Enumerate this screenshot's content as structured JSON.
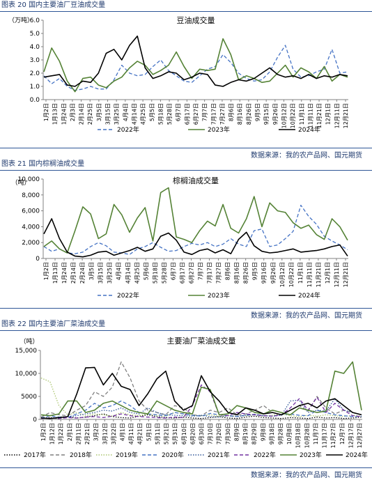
{
  "figures": [
    {
      "caption": "图表 20 国内主要油厂豆油成交量",
      "source": "数据来源：我的农产品网、国元期货"
    },
    {
      "caption": "图表 21 国内棕榈油成交量",
      "source": "数据来源：我的农产品网、国元期货"
    },
    {
      "caption": "图表 22 国内主要油厂菜油成交量",
      "source": "数据来源：我的农产品网、国元期货"
    }
  ],
  "chart_data": [
    {
      "type": "line",
      "title": "豆油成交量",
      "unit_label": "（万吨）",
      "ylim": [
        0,
        6
      ],
      "y_ticks": [
        "0.0",
        "1.0",
        "2.0",
        "3.0",
        "4.0",
        "5.0",
        "6.0"
      ],
      "x_tick_labels": [
        "1月2日",
        "1月13日",
        "1月24日",
        "2月3日",
        "2月14日",
        "2月25日",
        "3月5日",
        "3月15日",
        "3月25日",
        "4月4日",
        "4月14日",
        "4月25日",
        "5月5日",
        "5月18日",
        "5月28日",
        "6月7日",
        "6月17日",
        "6月27日",
        "7月7日",
        "7月17日",
        "7月27日",
        "8月6日",
        "8月16日",
        "8月26日",
        "9月5日",
        "9月15日",
        "9月26日",
        "10月12日",
        "10月22日",
        "11月1日",
        "11月11日",
        "11月21日",
        "12月1日",
        "12月11日",
        "12月21日"
      ],
      "grid": false,
      "legend_position": "bottom",
      "series": [
        {
          "name": "2022年",
          "color": "#4472c4",
          "dash": "dashed",
          "values": [
            1.8,
            1.2,
            1.6,
            1.0,
            0.7,
            0.8,
            1.0,
            0.8,
            0.8,
            1.5,
            2.6,
            2.0,
            1.8,
            1.9,
            2.5,
            3.0,
            2.2,
            1.8,
            1.4,
            1.3,
            1.8,
            2.3,
            2.5,
            3.4,
            2.8,
            2.0,
            1.6,
            1.4,
            1.5,
            2.1,
            3.2,
            4.1,
            2.3,
            1.7,
            1.8,
            2.1,
            2.3,
            3.8,
            2.0,
            2.1
          ]
        },
        {
          "name": "2023年",
          "color": "#548235",
          "dash": "solid",
          "values": [
            2.1,
            3.9,
            2.9,
            1.4,
            0.6,
            1.6,
            1.7,
            1.1,
            0.9,
            1.4,
            1.7,
            2.4,
            2.9,
            2.6,
            1.9,
            2.2,
            2.6,
            3.6,
            2.5,
            1.6,
            2.3,
            2.2,
            2.3,
            4.6,
            3.4,
            1.5,
            1.8,
            1.6,
            1.3,
            1.4,
            2.0,
            2.6,
            1.7,
            2.4,
            2.1,
            1.6,
            2.5,
            1.4,
            1.9,
            1.7
          ]
        },
        {
          "name": "2024年",
          "color": "#000000",
          "dash": "solid",
          "values": [
            1.7,
            1.8,
            1.9,
            1.1,
            1.0,
            1.4,
            1.3,
            2.0,
            3.5,
            3.8,
            3.0,
            4.1,
            4.8,
            2.4,
            1.6,
            1.8,
            2.1,
            2.0,
            1.5,
            1.7,
            2.0,
            1.9,
            1.1,
            1.0,
            1.3,
            1.5,
            1.4,
            1.6,
            2.0,
            2.4,
            1.9,
            1.7,
            1.8,
            1.6,
            1.9,
            1.6,
            1.8,
            1.7,
            1.9,
            1.8
          ]
        }
      ]
    },
    {
      "type": "line",
      "title": "棕榈油成交量",
      "unit_label": "（吨）",
      "ylim": [
        0,
        10000
      ],
      "y_ticks": [
        "0",
        "2,000",
        "4,000",
        "6,000",
        "8,000",
        "10,000"
      ],
      "x_tick_labels": [
        "1月2日",
        "1月13日",
        "1月24日",
        "2月14日",
        "2月24日",
        "3月5日",
        "3月15日",
        "3月25日",
        "4月4日",
        "4月14日",
        "4月25日",
        "5月6日",
        "5月18日",
        "5月28日",
        "6月7日",
        "6月17日",
        "6月27日",
        "7月7日",
        "7月17日",
        "7月27日",
        "8月6日",
        "8月16日",
        "8月26日",
        "9月5日",
        "9月16日",
        "9月26日",
        "10月12日",
        "10月22日",
        "11月1日",
        "11月11日",
        "11月21日",
        "12月1日",
        "12月11日",
        "12月21日"
      ],
      "grid": false,
      "legend_position": "bottom",
      "series": [
        {
          "name": "2022年",
          "color": "#4472c4",
          "dash": "dashed",
          "values": [
            1500,
            900,
            1200,
            700,
            600,
            800,
            1500,
            2000,
            1600,
            800,
            700,
            500,
            1200,
            1500,
            2000,
            1400,
            900,
            1000,
            1500,
            1900,
            1700,
            2000,
            1500,
            1800,
            2500,
            1800,
            1500,
            3500,
            3700,
            1500,
            1700,
            2500,
            3400,
            6700,
            5300,
            4300,
            2800,
            2200,
            1700,
            1100
          ]
        },
        {
          "name": "2023年",
          "color": "#548235",
          "dash": "solid",
          "values": [
            1500,
            2200,
            1200,
            700,
            3500,
            6500,
            5600,
            2500,
            3100,
            6800,
            5500,
            3300,
            5100,
            6400,
            2200,
            8300,
            8900,
            2700,
            2400,
            2000,
            3500,
            4700,
            4100,
            6800,
            3800,
            3200,
            5000,
            7800,
            4000,
            7000,
            6000,
            5800,
            4500,
            3800,
            4200,
            3000,
            2400,
            5000,
            4000,
            2300
          ]
        },
        {
          "name": "2024年",
          "color": "#000000",
          "dash": "solid",
          "values": [
            3100,
            5000,
            2500,
            800,
            300,
            200,
            400,
            800,
            900,
            400,
            700,
            1000,
            1400,
            900,
            1200,
            2800,
            3200,
            2300,
            800,
            500,
            1000,
            1200,
            700,
            1100,
            600,
            2400,
            3300,
            1600,
            900,
            700,
            800,
            1000,
            1200,
            800,
            900,
            1000,
            1200,
            1500,
            1700,
            300
          ]
        }
      ]
    },
    {
      "type": "line",
      "title": "主要油厂菜油成交量",
      "unit_label": "（吨）",
      "ylim": [
        0,
        15000
      ],
      "y_ticks": [
        "0",
        "5000",
        "10,000",
        "15,000"
      ],
      "x_tick_labels": [
        "1月2日",
        "1月12日",
        "1月22日",
        "2月1日",
        "2月11日",
        "2月21日",
        "3月2日",
        "3月12日",
        "3月22日",
        "4月1日",
        "4月11日",
        "4月21日",
        "5月1日",
        "5月11日",
        "5月21日",
        "5月31日",
        "6月10日",
        "6月20日",
        "6月30日",
        "7月10日",
        "7月20日",
        "7月30日",
        "8月9日",
        "8月19日",
        "8月29日",
        "9月8日",
        "9月18日",
        "9月28日",
        "10月8日",
        "10月18日",
        "10月28日",
        "11月7日",
        "11月17日",
        "11月27日",
        "12月7日",
        "12月17日",
        "12月27日"
      ],
      "grid": false,
      "legend_position": "bottom",
      "series": [
        {
          "name": "2017年",
          "color": "#000000",
          "dash": "dotted",
          "values": [
            300,
            400,
            200,
            600,
            300,
            500,
            800,
            1200,
            600,
            400,
            300,
            700,
            1000,
            600,
            400,
            300,
            500,
            300,
            200,
            400,
            600,
            300,
            200,
            500,
            700,
            400,
            300,
            200,
            400,
            300,
            200,
            500,
            300,
            400,
            200,
            300,
            500
          ]
        },
        {
          "name": "2018年",
          "color": "#7f7f7f",
          "dash": "dashed",
          "values": [
            500,
            1500,
            1000,
            800,
            2000,
            3000,
            6000,
            5000,
            7000,
            12500,
            9000,
            4000,
            2000,
            1500,
            1000,
            3000,
            2500,
            1000,
            800,
            2000,
            1500,
            2500,
            1000,
            1200,
            2000,
            3000,
            1500,
            1000,
            2000,
            3000,
            1800,
            5000,
            2500,
            1200,
            2000,
            1500,
            1000
          ]
        },
        {
          "name": "2019年",
          "color": "#a9c46c",
          "dash": "dotted",
          "values": [
            9000,
            8200,
            3000,
            1000,
            1500,
            800,
            1200,
            1000,
            700,
            1500,
            1000,
            800,
            1200,
            900,
            700,
            1500,
            1200,
            900,
            800,
            1000,
            700,
            900,
            600,
            800,
            1000,
            700,
            900,
            1200,
            800,
            600,
            900,
            700,
            1000,
            800,
            600,
            900,
            700
          ]
        },
        {
          "name": "2020年",
          "color": "#4472c4",
          "dash": "dashed",
          "values": [
            300,
            800,
            500,
            400,
            1200,
            2000,
            3500,
            2500,
            3000,
            4000,
            3000,
            1500,
            1200,
            1000,
            800,
            1500,
            1200,
            900,
            700,
            1300,
            1000,
            800,
            600,
            900,
            1100,
            800,
            700,
            1000,
            1200,
            900,
            800,
            2000,
            1500,
            1000,
            800,
            600,
            700
          ]
        },
        {
          "name": "2021年",
          "color": "#2f5597",
          "dash": "dotted",
          "values": [
            400,
            300,
            500,
            600,
            800,
            1200,
            1500,
            2000,
            1800,
            2500,
            1500,
            1200,
            2500,
            1500,
            1000,
            900,
            800,
            700,
            900,
            600,
            500,
            800,
            700,
            900,
            1000,
            800,
            700,
            900,
            4000,
            4200,
            1500,
            2000,
            1800,
            4500,
            2000,
            1500,
            1000
          ]
        },
        {
          "name": "2022年",
          "color": "#7030a0",
          "dash": "dashed",
          "values": [
            200,
            300,
            200,
            400,
            300,
            500,
            600,
            400,
            700,
            1200,
            800,
            600,
            500,
            400,
            300,
            500,
            400,
            3000,
            7500,
            6000,
            1000,
            800,
            1500,
            1200,
            1000,
            800,
            700,
            1000,
            2500,
            4500,
            2000,
            4800,
            1500,
            3500,
            2000,
            800,
            600
          ]
        },
        {
          "name": "2023年",
          "color": "#548235",
          "dash": "solid",
          "values": [
            1000,
            800,
            1200,
            4000,
            4000,
            1500,
            2000,
            3500,
            4000,
            3000,
            2000,
            1500,
            1200,
            4000,
            3000,
            2000,
            1500,
            1200,
            7000,
            6500,
            1000,
            1200,
            3000,
            2500,
            1500,
            1200,
            2000,
            1500,
            1000,
            2500,
            2000,
            1500,
            1800,
            10500,
            10000,
            12500,
            2000
          ]
        },
        {
          "name": "2024年",
          "color": "#000000",
          "dash": "solid",
          "values": [
            300,
            200,
            400,
            600,
            5500,
            11200,
            11300,
            7500,
            10000,
            7200,
            6500,
            3000,
            5600,
            8800,
            10500,
            4000,
            2000,
            3000,
            9500,
            6000,
            4000,
            1500,
            1000,
            2500,
            2000,
            1200,
            1500,
            1000,
            2000,
            3000,
            3500,
            2500,
            4000,
            4500,
            3000,
            1500,
            1000
          ]
        }
      ]
    }
  ]
}
